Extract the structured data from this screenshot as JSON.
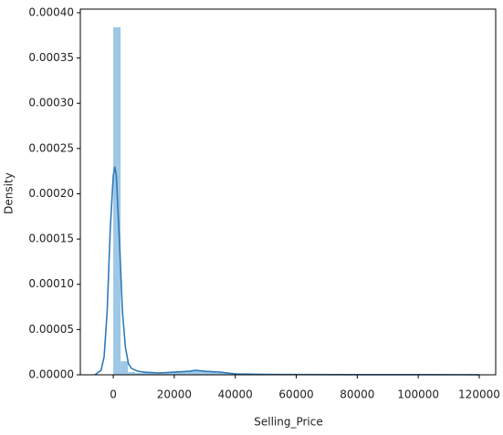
{
  "chart_data": {
    "type": "histogram",
    "xlabel": "Selling_Price",
    "ylabel": "Density",
    "bins": [
      0,
      2400,
      4800,
      7200,
      9600,
      12000,
      14400,
      16800,
      19200,
      21600,
      24000,
      26400,
      28800,
      31200,
      33600,
      36000,
      38400,
      40800,
      43200,
      45600,
      48000,
      50400,
      52800,
      55200,
      57600,
      60000,
      62400,
      64800,
      67200,
      69600,
      72000,
      74400,
      76800,
      79200,
      81600,
      84000,
      86400,
      88800,
      91200,
      93600,
      96000,
      98400,
      100800,
      103200,
      105600,
      108000,
      110400,
      112800,
      115200,
      117600,
      120000
    ],
    "values": [
      0.000384,
      1.5e-05,
      3e-06,
      2e-06,
      2e-06,
      2e-06,
      2e-06,
      2e-06,
      3e-06,
      3e-06,
      4e-06,
      5e-06,
      4e-06,
      3e-06,
      2e-06,
      2e-06,
      2e-06,
      1e-06,
      1e-06,
      1e-06,
      5e-07,
      5e-07,
      5e-07,
      5e-07,
      5e-07,
      5e-07,
      5e-07,
      5e-07,
      3e-07,
      3e-07,
      3e-07,
      3e-07,
      3e-07,
      3e-07,
      3e-07,
      3e-07,
      3e-07,
      3e-07,
      3e-07,
      3e-07,
      3e-07,
      3e-07,
      3e-07,
      3e-07,
      3e-07,
      3e-07,
      3e-07,
      3e-07,
      3e-07,
      5e-07
    ],
    "color": "#9ec8e6",
    "kde": {
      "color": "#2f7ab8",
      "x": [
        -6000,
        -4000,
        -3000,
        -2000,
        -1000,
        0,
        500,
        1000,
        2000,
        3000,
        4000,
        5000,
        6000,
        8000,
        10000,
        15000,
        20000,
        25000,
        27000,
        30000,
        35000,
        40000,
        50000,
        60000,
        80000,
        100000,
        120000
      ],
      "values": [
        0,
        5e-06,
        2e-05,
        7e-05,
        0.00016,
        0.00022,
        0.00023,
        0.00022,
        0.00015,
        7e-05,
        3e-05,
        1.2e-05,
        7e-06,
        4e-06,
        3e-06,
        2e-06,
        3e-06,
        4e-06,
        5e-06,
        4e-06,
        3e-06,
        1e-06,
        5e-07,
        3e-07,
        2e-07,
        2e-07,
        1e-07
      ]
    },
    "xlim": [
      -10800,
      125400
    ],
    "ylim": [
      0,
      0.000404
    ],
    "xticks": [
      0,
      20000,
      40000,
      60000,
      80000,
      100000,
      120000
    ],
    "yticks": [
      {
        "value": 0,
        "label": "0.00000"
      },
      {
        "value": 5e-05,
        "label": "0.00005"
      },
      {
        "value": 0.0001,
        "label": "0.00010"
      },
      {
        "value": 0.00015,
        "label": "0.00015"
      },
      {
        "value": 0.0002,
        "label": "0.00020"
      },
      {
        "value": 0.00025,
        "label": "0.00025"
      },
      {
        "value": 0.0003,
        "label": "0.00030"
      },
      {
        "value": 0.00035,
        "label": "0.00035"
      },
      {
        "value": 0.0004,
        "label": "0.00040"
      }
    ],
    "grid": false
  }
}
